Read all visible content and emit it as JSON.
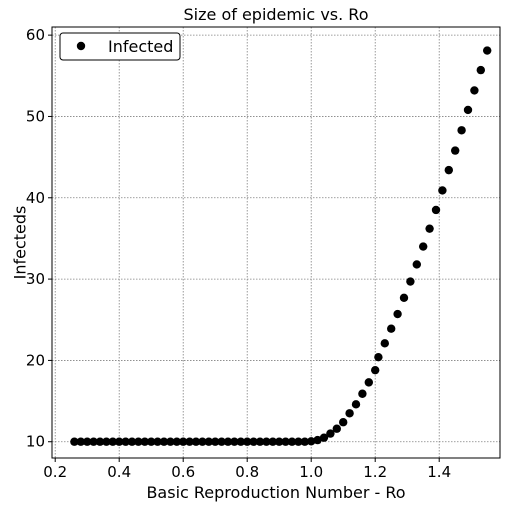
{
  "chart_data": {
    "type": "scatter",
    "title": "Size of epidemic vs. Ro",
    "xlabel": "Basic Reproduction Number - Ro",
    "ylabel": "Infecteds",
    "xlim": [
      0.19,
      1.59
    ],
    "ylim": [
      8,
      61
    ],
    "xticks": [
      0.2,
      0.4,
      0.6,
      0.8,
      1.0,
      1.2,
      1.4
    ],
    "xtick_labels": [
      "0.2",
      "0.4",
      "0.6",
      "0.8",
      "1.0",
      "1.2",
      "1.4"
    ],
    "yticks": [
      10,
      20,
      30,
      40,
      50,
      60
    ],
    "ytick_labels": [
      "10",
      "20",
      "30",
      "40",
      "50",
      "60"
    ],
    "grid": true,
    "legend_position": "top-left",
    "series": [
      {
        "name": "Infected",
        "color": "#000000",
        "marker": "circle",
        "points": [
          {
            "x": 0.26,
            "y": 10.0
          },
          {
            "x": 0.28,
            "y": 10.0
          },
          {
            "x": 0.3,
            "y": 10.0
          },
          {
            "x": 0.32,
            "y": 10.0
          },
          {
            "x": 0.34,
            "y": 10.0
          },
          {
            "x": 0.36,
            "y": 10.0
          },
          {
            "x": 0.38,
            "y": 10.0
          },
          {
            "x": 0.4,
            "y": 10.0
          },
          {
            "x": 0.42,
            "y": 10.0
          },
          {
            "x": 0.44,
            "y": 10.0
          },
          {
            "x": 0.46,
            "y": 10.0
          },
          {
            "x": 0.48,
            "y": 10.0
          },
          {
            "x": 0.5,
            "y": 10.0
          },
          {
            "x": 0.52,
            "y": 10.0
          },
          {
            "x": 0.54,
            "y": 10.0
          },
          {
            "x": 0.56,
            "y": 10.0
          },
          {
            "x": 0.58,
            "y": 10.0
          },
          {
            "x": 0.6,
            "y": 10.0
          },
          {
            "x": 0.62,
            "y": 10.0
          },
          {
            "x": 0.64,
            "y": 10.0
          },
          {
            "x": 0.66,
            "y": 10.0
          },
          {
            "x": 0.68,
            "y": 10.0
          },
          {
            "x": 0.7,
            "y": 10.0
          },
          {
            "x": 0.72,
            "y": 10.0
          },
          {
            "x": 0.74,
            "y": 10.0
          },
          {
            "x": 0.76,
            "y": 10.0
          },
          {
            "x": 0.78,
            "y": 10.0
          },
          {
            "x": 0.8,
            "y": 10.0
          },
          {
            "x": 0.82,
            "y": 10.0
          },
          {
            "x": 0.84,
            "y": 10.0
          },
          {
            "x": 0.86,
            "y": 10.0
          },
          {
            "x": 0.88,
            "y": 10.0
          },
          {
            "x": 0.9,
            "y": 10.0
          },
          {
            "x": 0.92,
            "y": 10.0
          },
          {
            "x": 0.94,
            "y": 10.0
          },
          {
            "x": 0.96,
            "y": 10.0
          },
          {
            "x": 0.98,
            "y": 10.0
          },
          {
            "x": 1.0,
            "y": 10.05
          },
          {
            "x": 1.02,
            "y": 10.2
          },
          {
            "x": 1.04,
            "y": 10.5
          },
          {
            "x": 1.06,
            "y": 11.0
          },
          {
            "x": 1.08,
            "y": 11.6
          },
          {
            "x": 1.1,
            "y": 12.4
          },
          {
            "x": 1.12,
            "y": 13.5
          },
          {
            "x": 1.14,
            "y": 14.6
          },
          {
            "x": 1.16,
            "y": 15.9
          },
          {
            "x": 1.18,
            "y": 17.3
          },
          {
            "x": 1.2,
            "y": 18.8
          },
          {
            "x": 1.21,
            "y": 20.4
          },
          {
            "x": 1.23,
            "y": 22.1
          },
          {
            "x": 1.25,
            "y": 23.9
          },
          {
            "x": 1.27,
            "y": 25.7
          },
          {
            "x": 1.29,
            "y": 27.7
          },
          {
            "x": 1.31,
            "y": 29.7
          },
          {
            "x": 1.33,
            "y": 31.8
          },
          {
            "x": 1.35,
            "y": 34.0
          },
          {
            "x": 1.37,
            "y": 36.2
          },
          {
            "x": 1.39,
            "y": 38.5
          },
          {
            "x": 1.41,
            "y": 40.9
          },
          {
            "x": 1.43,
            "y": 43.4
          },
          {
            "x": 1.45,
            "y": 45.8
          },
          {
            "x": 1.47,
            "y": 48.3
          },
          {
            "x": 1.49,
            "y": 50.8
          },
          {
            "x": 1.51,
            "y": 53.2
          },
          {
            "x": 1.53,
            "y": 55.7
          },
          {
            "x": 1.55,
            "y": 58.1
          }
        ]
      }
    ]
  }
}
